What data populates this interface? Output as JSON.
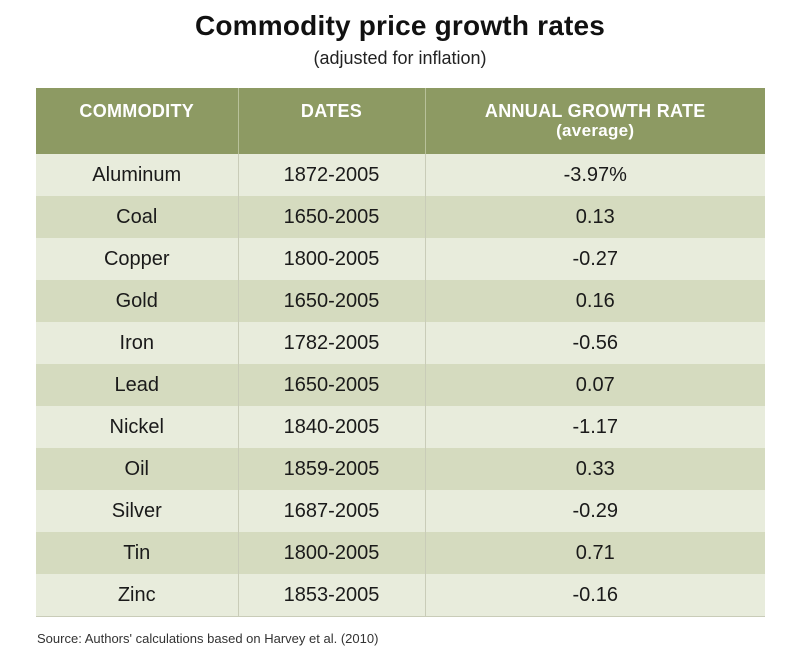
{
  "chart_data": {
    "type": "table",
    "title": "Commodity price growth rates",
    "subtitle": "(adjusted for inflation)",
    "columns": [
      {
        "label": "COMMODITY",
        "sublabel": ""
      },
      {
        "label": "DATES",
        "sublabel": ""
      },
      {
        "label": "ANNUAL GROWTH RATE",
        "sublabel": "(average)"
      }
    ],
    "rows": [
      {
        "commodity": "Aluminum",
        "dates": "1872-2005",
        "rate": "-3.97%"
      },
      {
        "commodity": "Coal",
        "dates": "1650-2005",
        "rate": "0.13"
      },
      {
        "commodity": "Copper",
        "dates": "1800-2005",
        "rate": "-0.27"
      },
      {
        "commodity": "Gold",
        "dates": "1650-2005",
        "rate": "0.16"
      },
      {
        "commodity": "Iron",
        "dates": "1782-2005",
        "rate": "-0.56"
      },
      {
        "commodity": "Lead",
        "dates": "1650-2005",
        "rate": "0.07"
      },
      {
        "commodity": "Nickel",
        "dates": "1840-2005",
        "rate": "-1.17"
      },
      {
        "commodity": "Oil",
        "dates": "1859-2005",
        "rate": "0.33"
      },
      {
        "commodity": "Silver",
        "dates": "1687-2005",
        "rate": "-0.29"
      },
      {
        "commodity": "Tin",
        "dates": "1800-2005",
        "rate": "0.71"
      },
      {
        "commodity": "Zinc",
        "dates": "1853-2005",
        "rate": "-0.16"
      }
    ],
    "source": "Source: Authors' calculations based on Harvey et al. (2010)"
  },
  "colors": {
    "header_bg": "#8d9a63",
    "row_light": "#e8ecdc",
    "row_dark": "#d5dbbf"
  }
}
